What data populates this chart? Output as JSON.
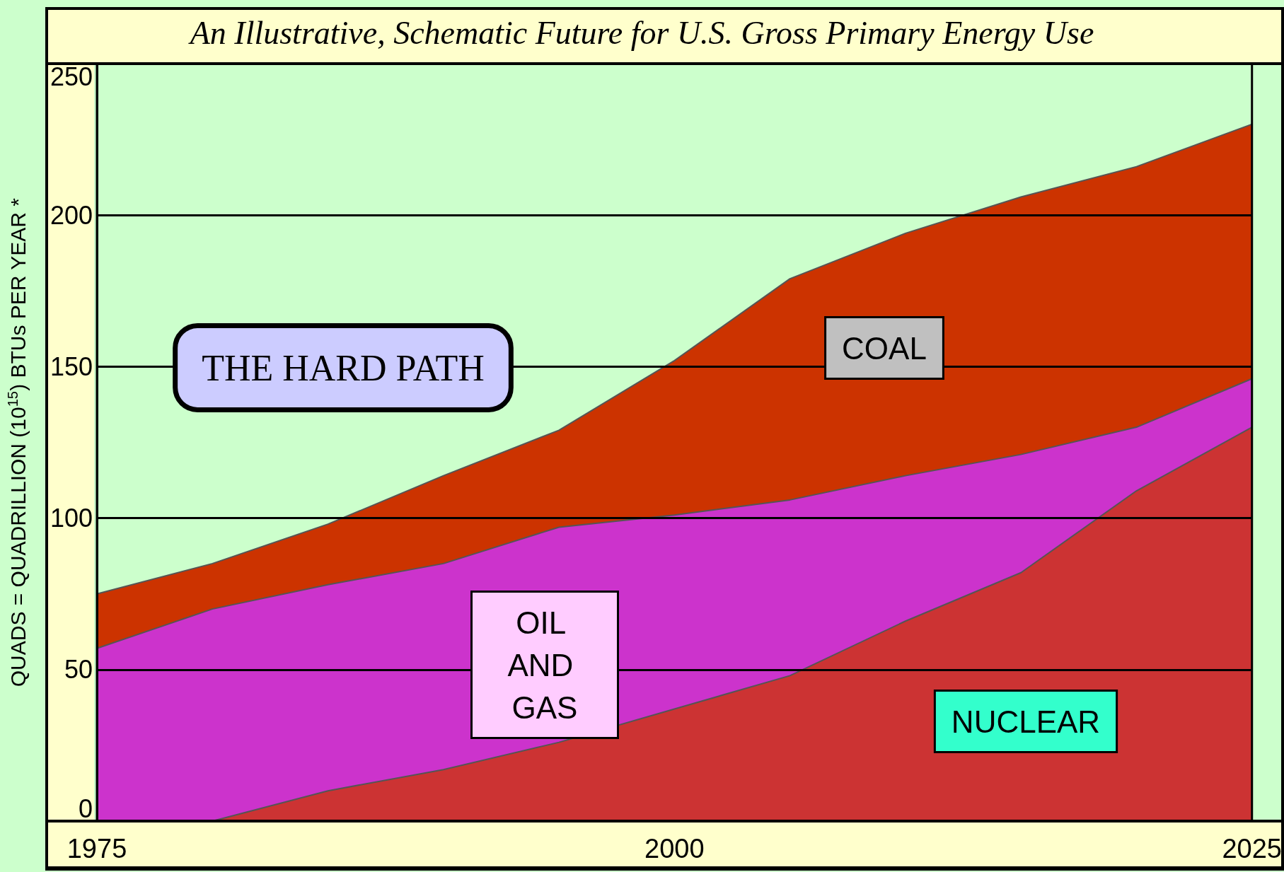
{
  "chart_data": {
    "type": "area",
    "stacked": true,
    "title": "An Illustrative, Schematic Future for U.S. Gross Primary Energy Use",
    "ylabel": "QUADS = QUADRILLION (10$^{15}$) BTUs PER YEAR *",
    "x": [
      1975,
      1980,
      1985,
      1990,
      1995,
      2000,
      2005,
      2010,
      2015,
      2020,
      2025
    ],
    "series": [
      {
        "name": "NUCLEAR",
        "color": "#cc3333",
        "values": [
          0,
          0,
          10,
          17,
          26,
          37,
          48,
          66,
          82,
          109,
          130
        ]
      },
      {
        "name": "OIL AND GAS",
        "color": "#cc33cc",
        "values": [
          57,
          70,
          68,
          68,
          71,
          64,
          58,
          48,
          39,
          21,
          16
        ]
      },
      {
        "name": "COAL",
        "color": "#cc3300",
        "values": [
          18,
          15,
          20,
          29,
          32,
          51,
          73,
          80,
          85,
          86,
          84
        ]
      }
    ],
    "xlim": [
      1975,
      2025
    ],
    "xticks": [
      1975,
      2000,
      2025
    ],
    "ylim": [
      0,
      250
    ],
    "yticks": [
      0,
      50,
      100,
      150,
      200,
      250
    ],
    "grid": "y",
    "annotations": [
      "THE HARD PATH"
    ]
  }
}
